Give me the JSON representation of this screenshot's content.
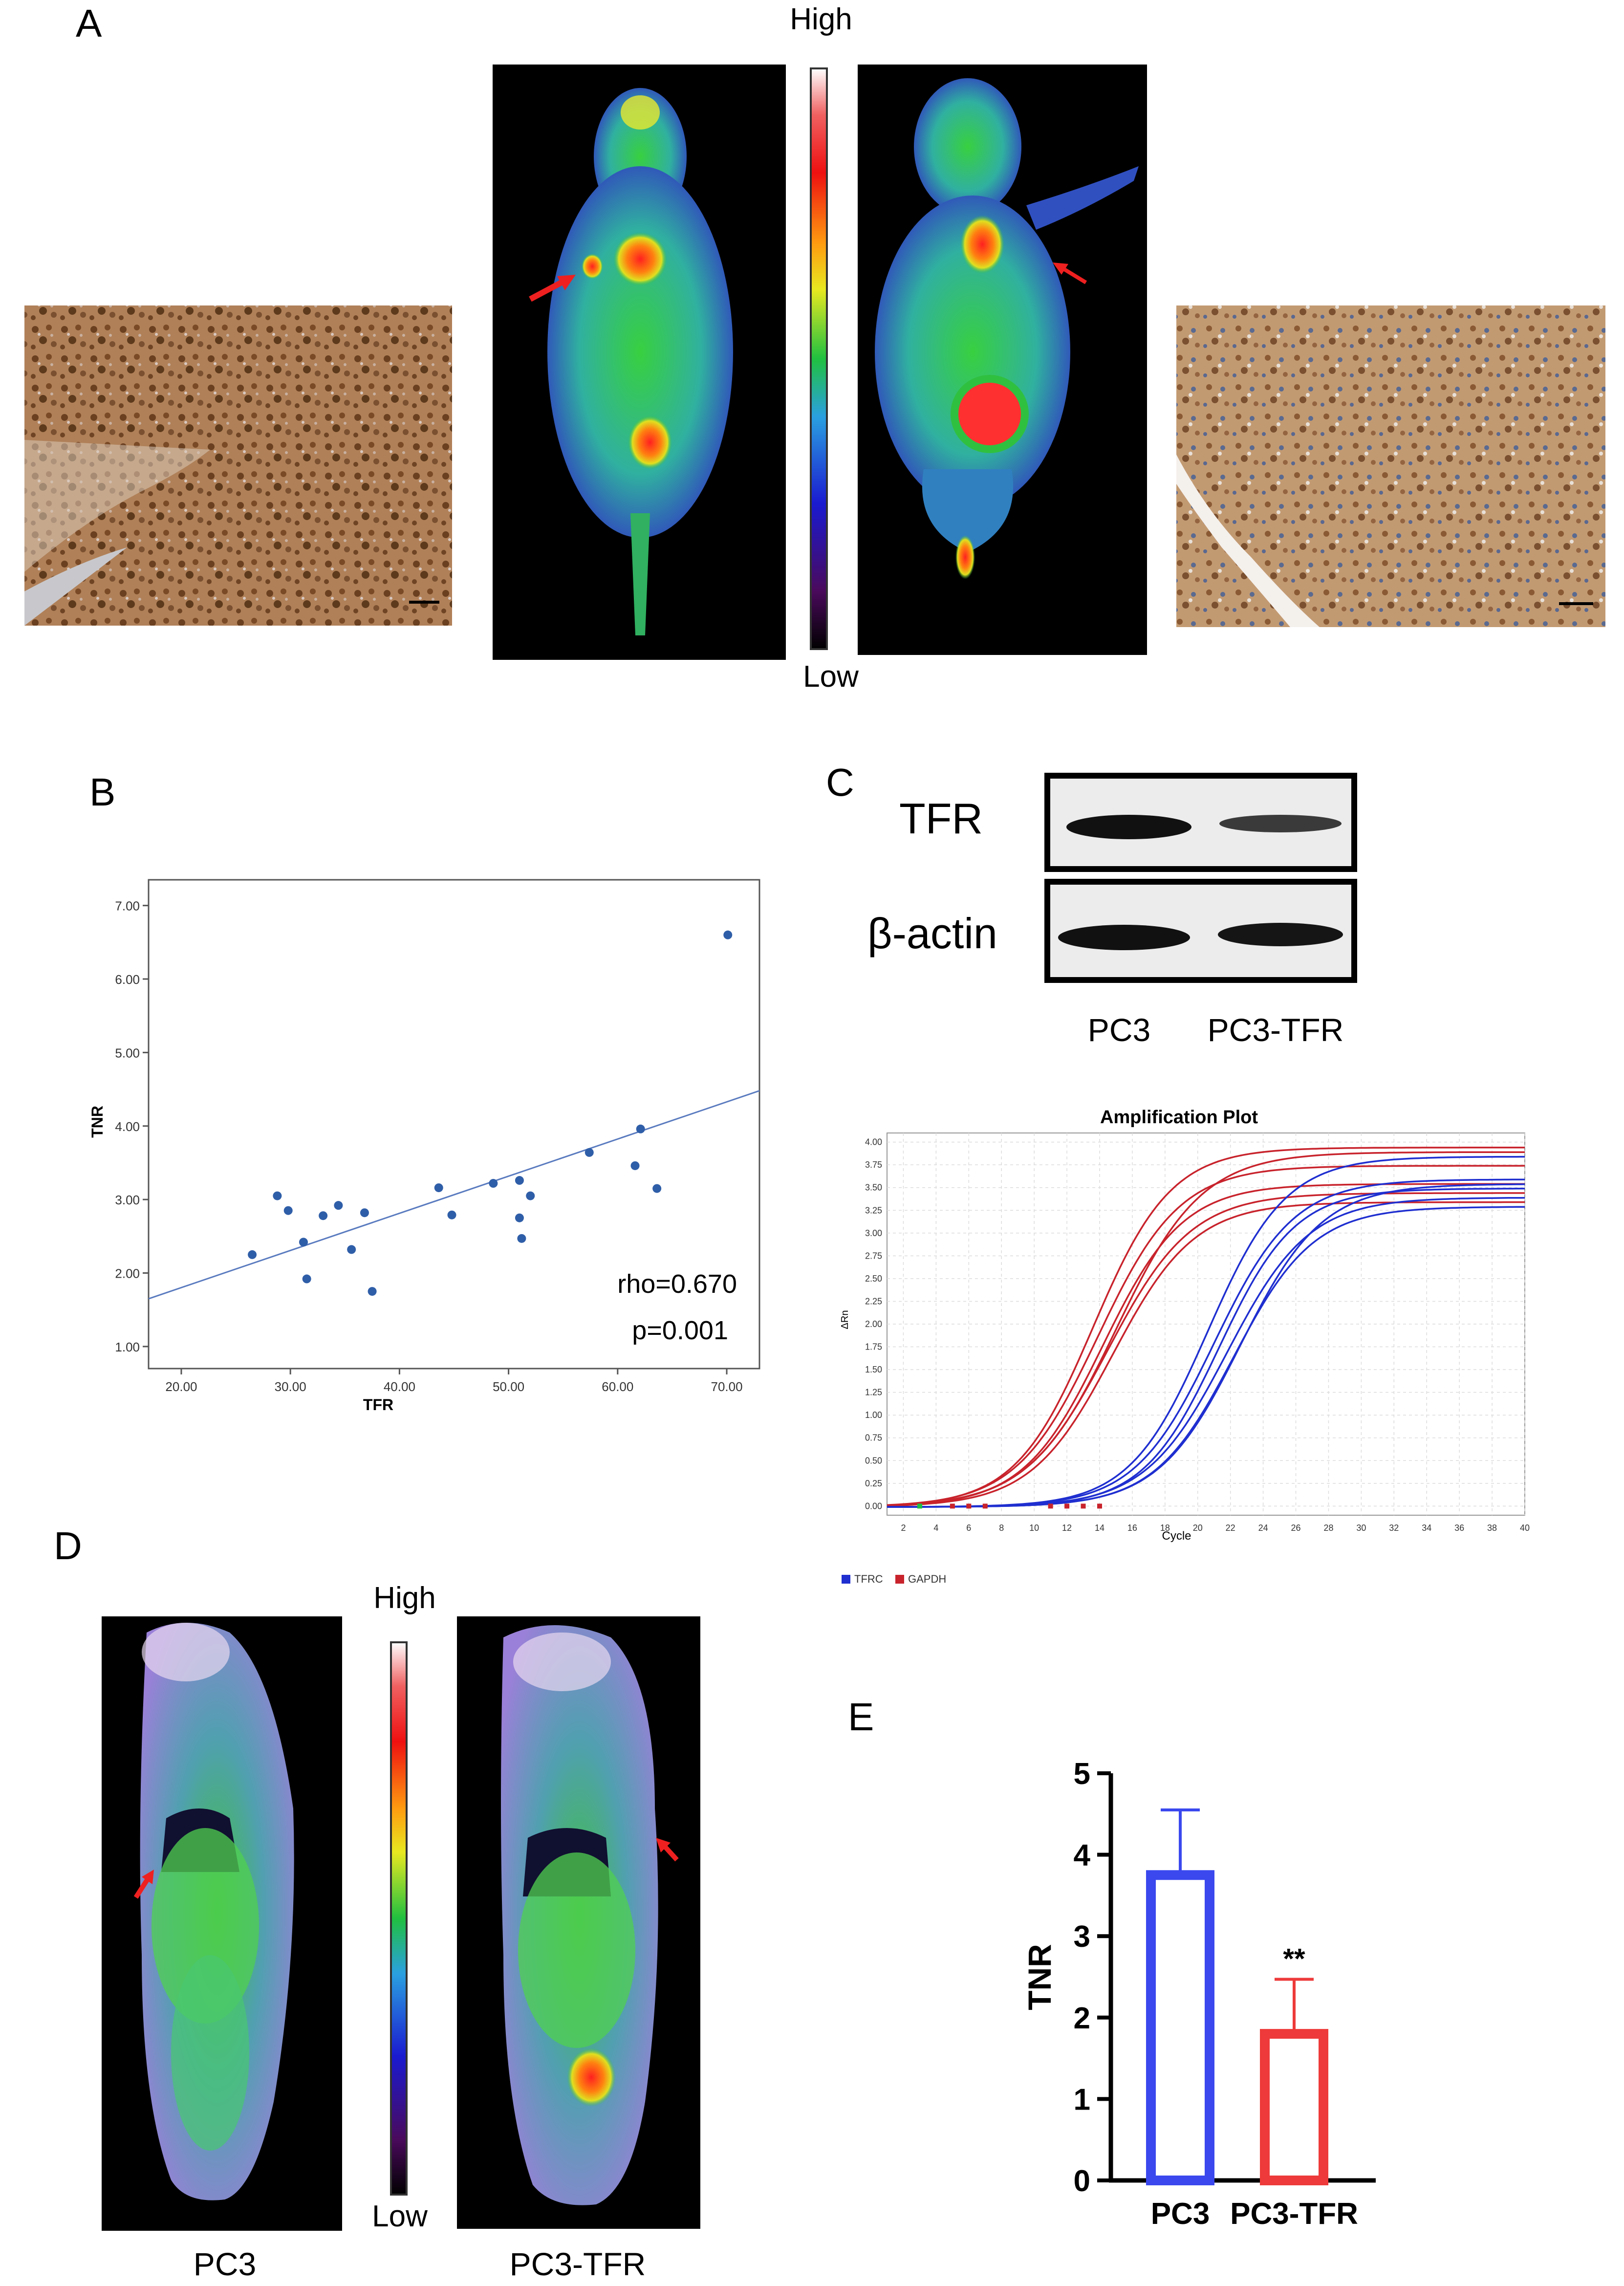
{
  "panel_a": {
    "label": "A",
    "scale_high": "High",
    "scale_low": "Low"
  },
  "panel_b": {
    "label": "B"
  },
  "panel_c": {
    "label": "C",
    "blot_rows": [
      "TFR",
      "β-actin"
    ],
    "blot_lanes": [
      "PC3",
      "PC3-TFR"
    ]
  },
  "panel_d": {
    "label": "D",
    "scale_high": "High",
    "scale_low": "Low",
    "left_caption": "PC3",
    "right_caption": "PC3-TFR"
  },
  "panel_e": {
    "label": "E"
  },
  "colors": {
    "scatter_point": "#2f5ea8",
    "fit_line": "#5a7bbf",
    "tfrc_blue": "#1f2fd0",
    "gapdh_red": "#c8232c",
    "bar_pc3": "#3a48ee",
    "bar_pc3tfr": "#ee3a3a",
    "arrow_red": "#ee2020"
  },
  "chart_data": [
    {
      "id": "scatter",
      "type": "scatter",
      "title": "",
      "xlabel": "TFR",
      "ylabel": "TNR",
      "xlim": [
        17,
        73
      ],
      "ylim": [
        0.7,
        7.35
      ],
      "xticks": [
        "20.00",
        "30.00",
        "40.00",
        "50.00",
        "60.00",
        "70.00"
      ],
      "yticks": [
        "1.00",
        "2.00",
        "3.00",
        "4.00",
        "5.00",
        "6.00",
        "7.00"
      ],
      "points": [
        [
          26.5,
          2.25
        ],
        [
          28.8,
          3.05
        ],
        [
          29.8,
          2.85
        ],
        [
          31.2,
          2.42
        ],
        [
          31.5,
          1.92
        ],
        [
          33.0,
          2.78
        ],
        [
          34.4,
          2.92
        ],
        [
          35.6,
          2.32
        ],
        [
          36.8,
          2.82
        ],
        [
          37.5,
          1.75
        ],
        [
          43.6,
          3.16
        ],
        [
          44.8,
          2.79
        ],
        [
          48.6,
          3.22
        ],
        [
          51.0,
          3.26
        ],
        [
          51.0,
          2.75
        ],
        [
          51.2,
          2.47
        ],
        [
          52.0,
          3.05
        ],
        [
          57.4,
          3.64
        ],
        [
          61.6,
          3.46
        ],
        [
          62.1,
          3.96
        ],
        [
          63.6,
          3.15
        ],
        [
          70.1,
          6.6
        ]
      ],
      "fit_line": [
        [
          17,
          1.65
        ],
        [
          73,
          4.48
        ]
      ],
      "annotations": [
        "rho=0.670",
        "p=0.001"
      ]
    },
    {
      "id": "amplification",
      "type": "line",
      "title": "Amplification Plot",
      "xlabel": "Cycle",
      "ylabel": "ΔRn",
      "xlim": [
        1,
        40
      ],
      "ylim": [
        -0.1,
        4.1
      ],
      "xticks": [
        "2",
        "4",
        "6",
        "8",
        "10",
        "12",
        "14",
        "16",
        "18",
        "20",
        "22",
        "24",
        "26",
        "28",
        "30",
        "32",
        "34",
        "36",
        "38",
        "40"
      ],
      "yticks": [
        "0.00",
        "0.25",
        "0.50",
        "0.75",
        "1.00",
        "1.25",
        "1.50",
        "1.75",
        "2.00",
        "2.25",
        "2.50",
        "2.75",
        "3.00",
        "3.25",
        "3.50",
        "3.75",
        "4.00"
      ],
      "legend": [
        "TFRC",
        "GAPDH"
      ],
      "series": [
        {
          "name": "GAPDH",
          "color": "#c8232c",
          "curves": [
            {
              "mid": 13.6,
              "plateau": 3.95,
              "k": 0.42
            },
            {
              "mid": 13.9,
              "plateau": 3.75,
              "k": 0.4
            },
            {
              "mid": 14.2,
              "plateau": 3.55,
              "k": 0.41
            },
            {
              "mid": 14.5,
              "plateau": 3.45,
              "k": 0.39
            },
            {
              "mid": 14.8,
              "plateau": 3.35,
              "k": 0.4
            },
            {
              "mid": 15.0,
              "plateau": 3.9,
              "k": 0.38
            }
          ]
        },
        {
          "name": "TFRC",
          "color": "#1f2fd0",
          "curves": [
            {
              "mid": 20.6,
              "plateau": 3.85,
              "k": 0.42
            },
            {
              "mid": 21.0,
              "plateau": 3.6,
              "k": 0.41
            },
            {
              "mid": 21.3,
              "plateau": 3.5,
              "k": 0.43
            },
            {
              "mid": 21.8,
              "plateau": 3.4,
              "k": 0.4
            },
            {
              "mid": 22.2,
              "plateau": 3.3,
              "k": 0.41
            },
            {
              "mid": 22.6,
              "plateau": 3.55,
              "k": 0.4
            }
          ]
        }
      ]
    },
    {
      "id": "bar",
      "type": "bar",
      "title": "",
      "xlabel": "",
      "ylabel": "TNR",
      "ylim": [
        0,
        5
      ],
      "yticks": [
        "0",
        "1",
        "2",
        "3",
        "4",
        "5"
      ],
      "categories": [
        "PC3",
        "PC3-TFR"
      ],
      "values": [
        3.75,
        1.8
      ],
      "errors": [
        0.8,
        0.67
      ],
      "significance": [
        "",
        "**"
      ]
    }
  ]
}
